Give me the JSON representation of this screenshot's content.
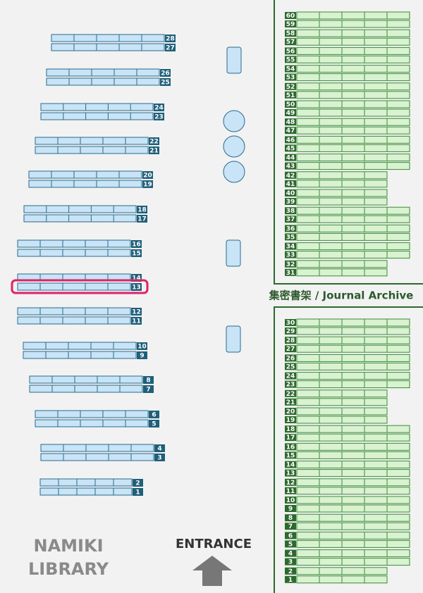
{
  "title": [
    "NAMIKI",
    "LIBRARY"
  ],
  "entrance": "ENTRANCE",
  "archive_label": "集密書架 / Journal Archive",
  "stacks": [
    {
      "label": "28"
    },
    {
      "label": "27"
    },
    {
      "label": "26"
    },
    {
      "label": "25"
    },
    {
      "label": "24"
    },
    {
      "label": "23"
    },
    {
      "label": "22"
    },
    {
      "label": "21"
    },
    {
      "label": "20"
    },
    {
      "label": "19"
    },
    {
      "label": "18"
    },
    {
      "label": "17"
    },
    {
      "label": "16"
    },
    {
      "label": "15"
    },
    {
      "label": "14"
    },
    {
      "label": "13",
      "selected": true
    },
    {
      "label": "12"
    },
    {
      "label": "11"
    },
    {
      "label": "10"
    },
    {
      "label": "9"
    },
    {
      "label": "8"
    },
    {
      "label": "7"
    },
    {
      "label": "6"
    },
    {
      "label": "5"
    },
    {
      "label": "4"
    },
    {
      "label": "3"
    },
    {
      "label": "2"
    },
    {
      "label": "1"
    }
  ],
  "archive": {
    "upper": [
      "60",
      "59",
      "58",
      "57",
      "56",
      "55",
      "54",
      "53",
      "52",
      "51",
      "50",
      "49",
      "48",
      "47",
      "46",
      "45",
      "44",
      "43",
      "42",
      "41",
      "40",
      "39",
      "38",
      "37",
      "36",
      "35",
      "34",
      "33",
      "32",
      "31"
    ],
    "lower": [
      "30",
      "29",
      "28",
      "27",
      "26",
      "25",
      "24",
      "23",
      "22",
      "21",
      "20",
      "19",
      "18",
      "17",
      "16",
      "15",
      "14",
      "13",
      "12",
      "11",
      "10",
      "9",
      "8",
      "7",
      "6",
      "5",
      "4",
      "3",
      "2",
      "1"
    ]
  }
}
